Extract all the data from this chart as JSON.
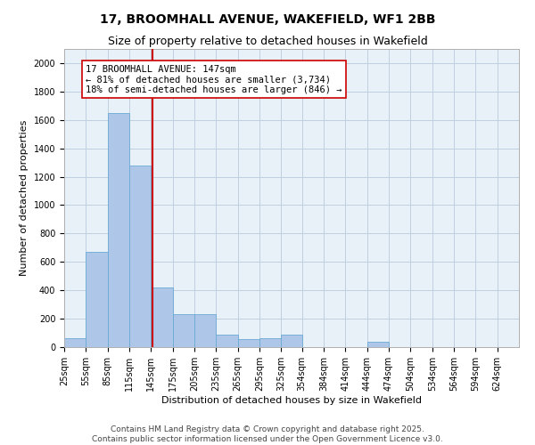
{
  "title": "17, BROOMHALL AVENUE, WAKEFIELD, WF1 2BB",
  "subtitle": "Size of property relative to detached houses in Wakefield",
  "xlabel": "Distribution of detached houses by size in Wakefield",
  "ylabel": "Number of detached properties",
  "bin_labels": [
    "25sqm",
    "55sqm",
    "85sqm",
    "115sqm",
    "145sqm",
    "175sqm",
    "205sqm",
    "235sqm",
    "265sqm",
    "295sqm",
    "325sqm",
    "354sqm",
    "384sqm",
    "414sqm",
    "444sqm",
    "474sqm",
    "504sqm",
    "534sqm",
    "564sqm",
    "594sqm",
    "624sqm"
  ],
  "bin_edges": [
    25,
    55,
    85,
    115,
    145,
    175,
    205,
    235,
    265,
    295,
    325,
    354,
    384,
    414,
    444,
    474,
    504,
    534,
    564,
    594,
    624,
    654
  ],
  "bar_heights": [
    65,
    670,
    1650,
    1280,
    420,
    230,
    230,
    90,
    55,
    65,
    90,
    0,
    0,
    0,
    40,
    0,
    0,
    0,
    0,
    0,
    0
  ],
  "bar_color": "#aec6e8",
  "bar_edge_color": "#6aaad4",
  "property_size": 147,
  "red_line_color": "#cc0000",
  "annotation_text": "17 BROOMHALL AVENUE: 147sqm\n← 81% of detached houses are smaller (3,734)\n18% of semi-detached houses are larger (846) →",
  "annotation_box_color": "#ffffff",
  "annotation_box_edge_color": "#cc0000",
  "ylim": [
    0,
    2100
  ],
  "yticks": [
    0,
    200,
    400,
    600,
    800,
    1000,
    1200,
    1400,
    1600,
    1800,
    2000
  ],
  "grid_color": "#c0cfe0",
  "background_color": "#e8f0f8",
  "footer_text": "Contains HM Land Registry data © Crown copyright and database right 2025.\nContains public sector information licensed under the Open Government Licence v3.0.",
  "title_fontsize": 10,
  "subtitle_fontsize": 9,
  "label_fontsize": 8,
  "tick_fontsize": 7,
  "annotation_fontsize": 7.5,
  "footer_fontsize": 6.5
}
